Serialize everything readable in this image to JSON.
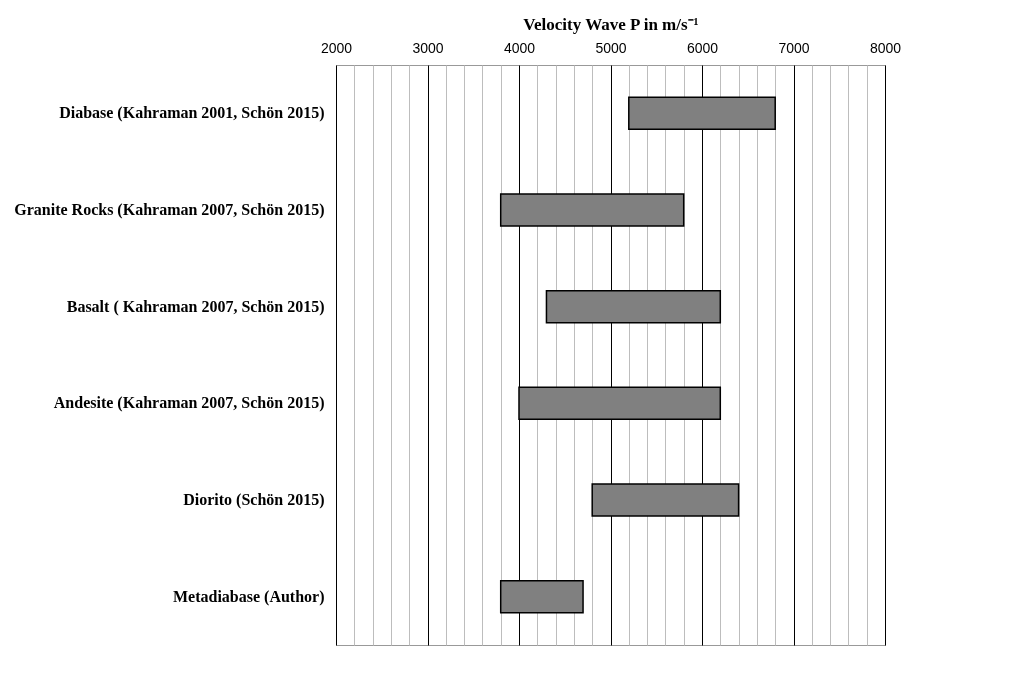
{
  "chart_data": {
    "type": "bar",
    "orientation": "horizontal",
    "xlabel": "Velocity  Wave  P  in  m/s⁻¹",
    "categories": [
      "Diabase (Kahraman 2001, Schön 2015)",
      "Granite Rocks (Kahraman 2007, Schön 2015)",
      "Basalt ( Kahraman 2007, Schön 2015)",
      "Andesite (Kahraman 2007, Schön 2015)",
      "Diorito (Schön 2015)",
      "Metadiabase (Author)"
    ],
    "base": [
      5200,
      3800,
      4300,
      4000,
      4800,
      3800
    ],
    "values": [
      1600,
      2000,
      1900,
      2200,
      1600,
      900
    ],
    "color": "#808080",
    "xlim": [
      2000,
      8000
    ],
    "xticks": [
      2000,
      {
        "value": 2200,
        "label": null
      },
      {
        "value": 2400,
        "label": null
      },
      {
        "value": 2600,
        "label": null
      },
      {
        "value": 2800,
        "label": null
      },
      3000,
      {
        "value": 3200,
        "label": null
      },
      {
        "value": 3400,
        "label": null
      },
      {
        "value": 3600,
        "label": null
      },
      {
        "value": 3800,
        "label": null
      },
      4000,
      {
        "value": 4200,
        "label": null
      },
      {
        "value": 4400,
        "label": null
      },
      {
        "value": 4600,
        "label": null
      },
      {
        "value": 4800,
        "label": null
      },
      5000,
      {
        "value": 5200,
        "label": null
      },
      {
        "value": 5400,
        "label": null
      },
      {
        "value": 5600,
        "label": null
      },
      {
        "value": 5800,
        "label": null
      },
      6000,
      {
        "value": 6200,
        "label": null
      },
      {
        "value": 6400,
        "label": null
      },
      {
        "value": 6600,
        "label": null
      },
      {
        "value": 6800,
        "label": null
      },
      7000,
      {
        "value": 7200,
        "label": null
      },
      {
        "value": 7400,
        "label": null
      },
      {
        "value": 7600,
        "label": null
      },
      {
        "value": 7800,
        "label": null
      },
      8000
    ],
    "grid": "x"
  }
}
